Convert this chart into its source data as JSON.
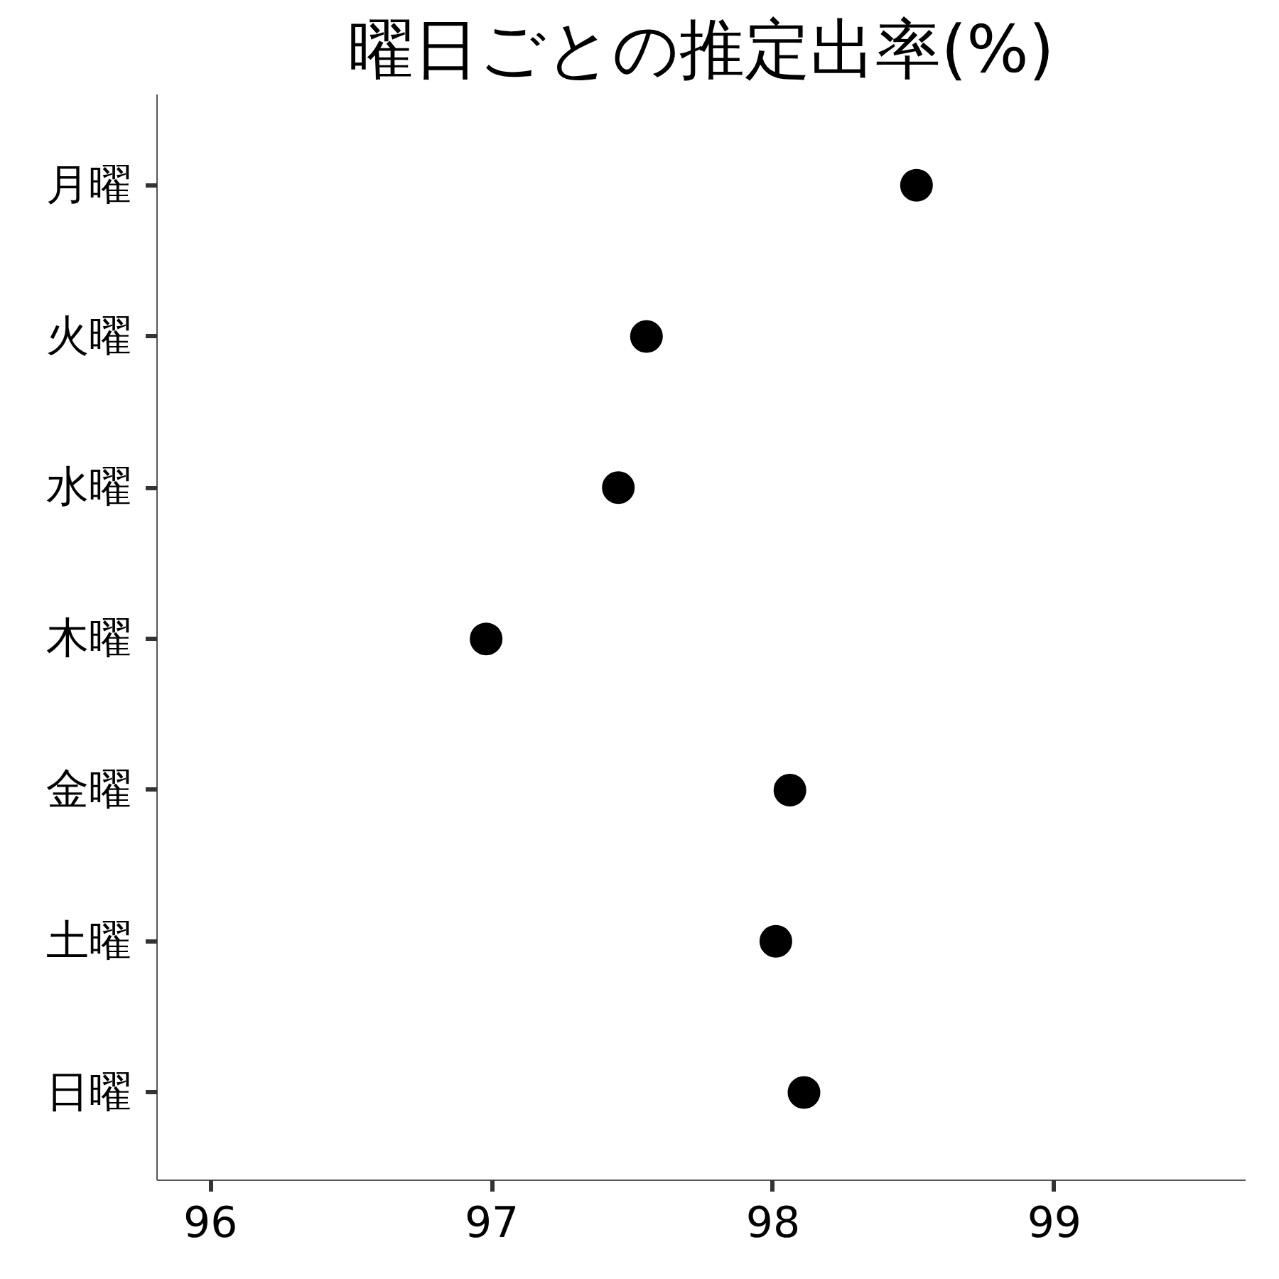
{
  "chart_data": {
    "type": "scatter",
    "title": "曜日ごとの推定出率(%)",
    "orientation": "horizontal",
    "categories": [
      "月曜",
      "火曜",
      "水曜",
      "木曜",
      "金曜",
      "土曜",
      "日曜"
    ],
    "values": [
      98.51,
      97.55,
      97.45,
      96.98,
      98.06,
      98.01,
      98.11
    ],
    "color": "#000000",
    "marker": "circle",
    "xlim": [
      95.81,
      99.68
    ],
    "xticks": [
      96,
      97,
      98,
      99
    ],
    "grid": false
  }
}
